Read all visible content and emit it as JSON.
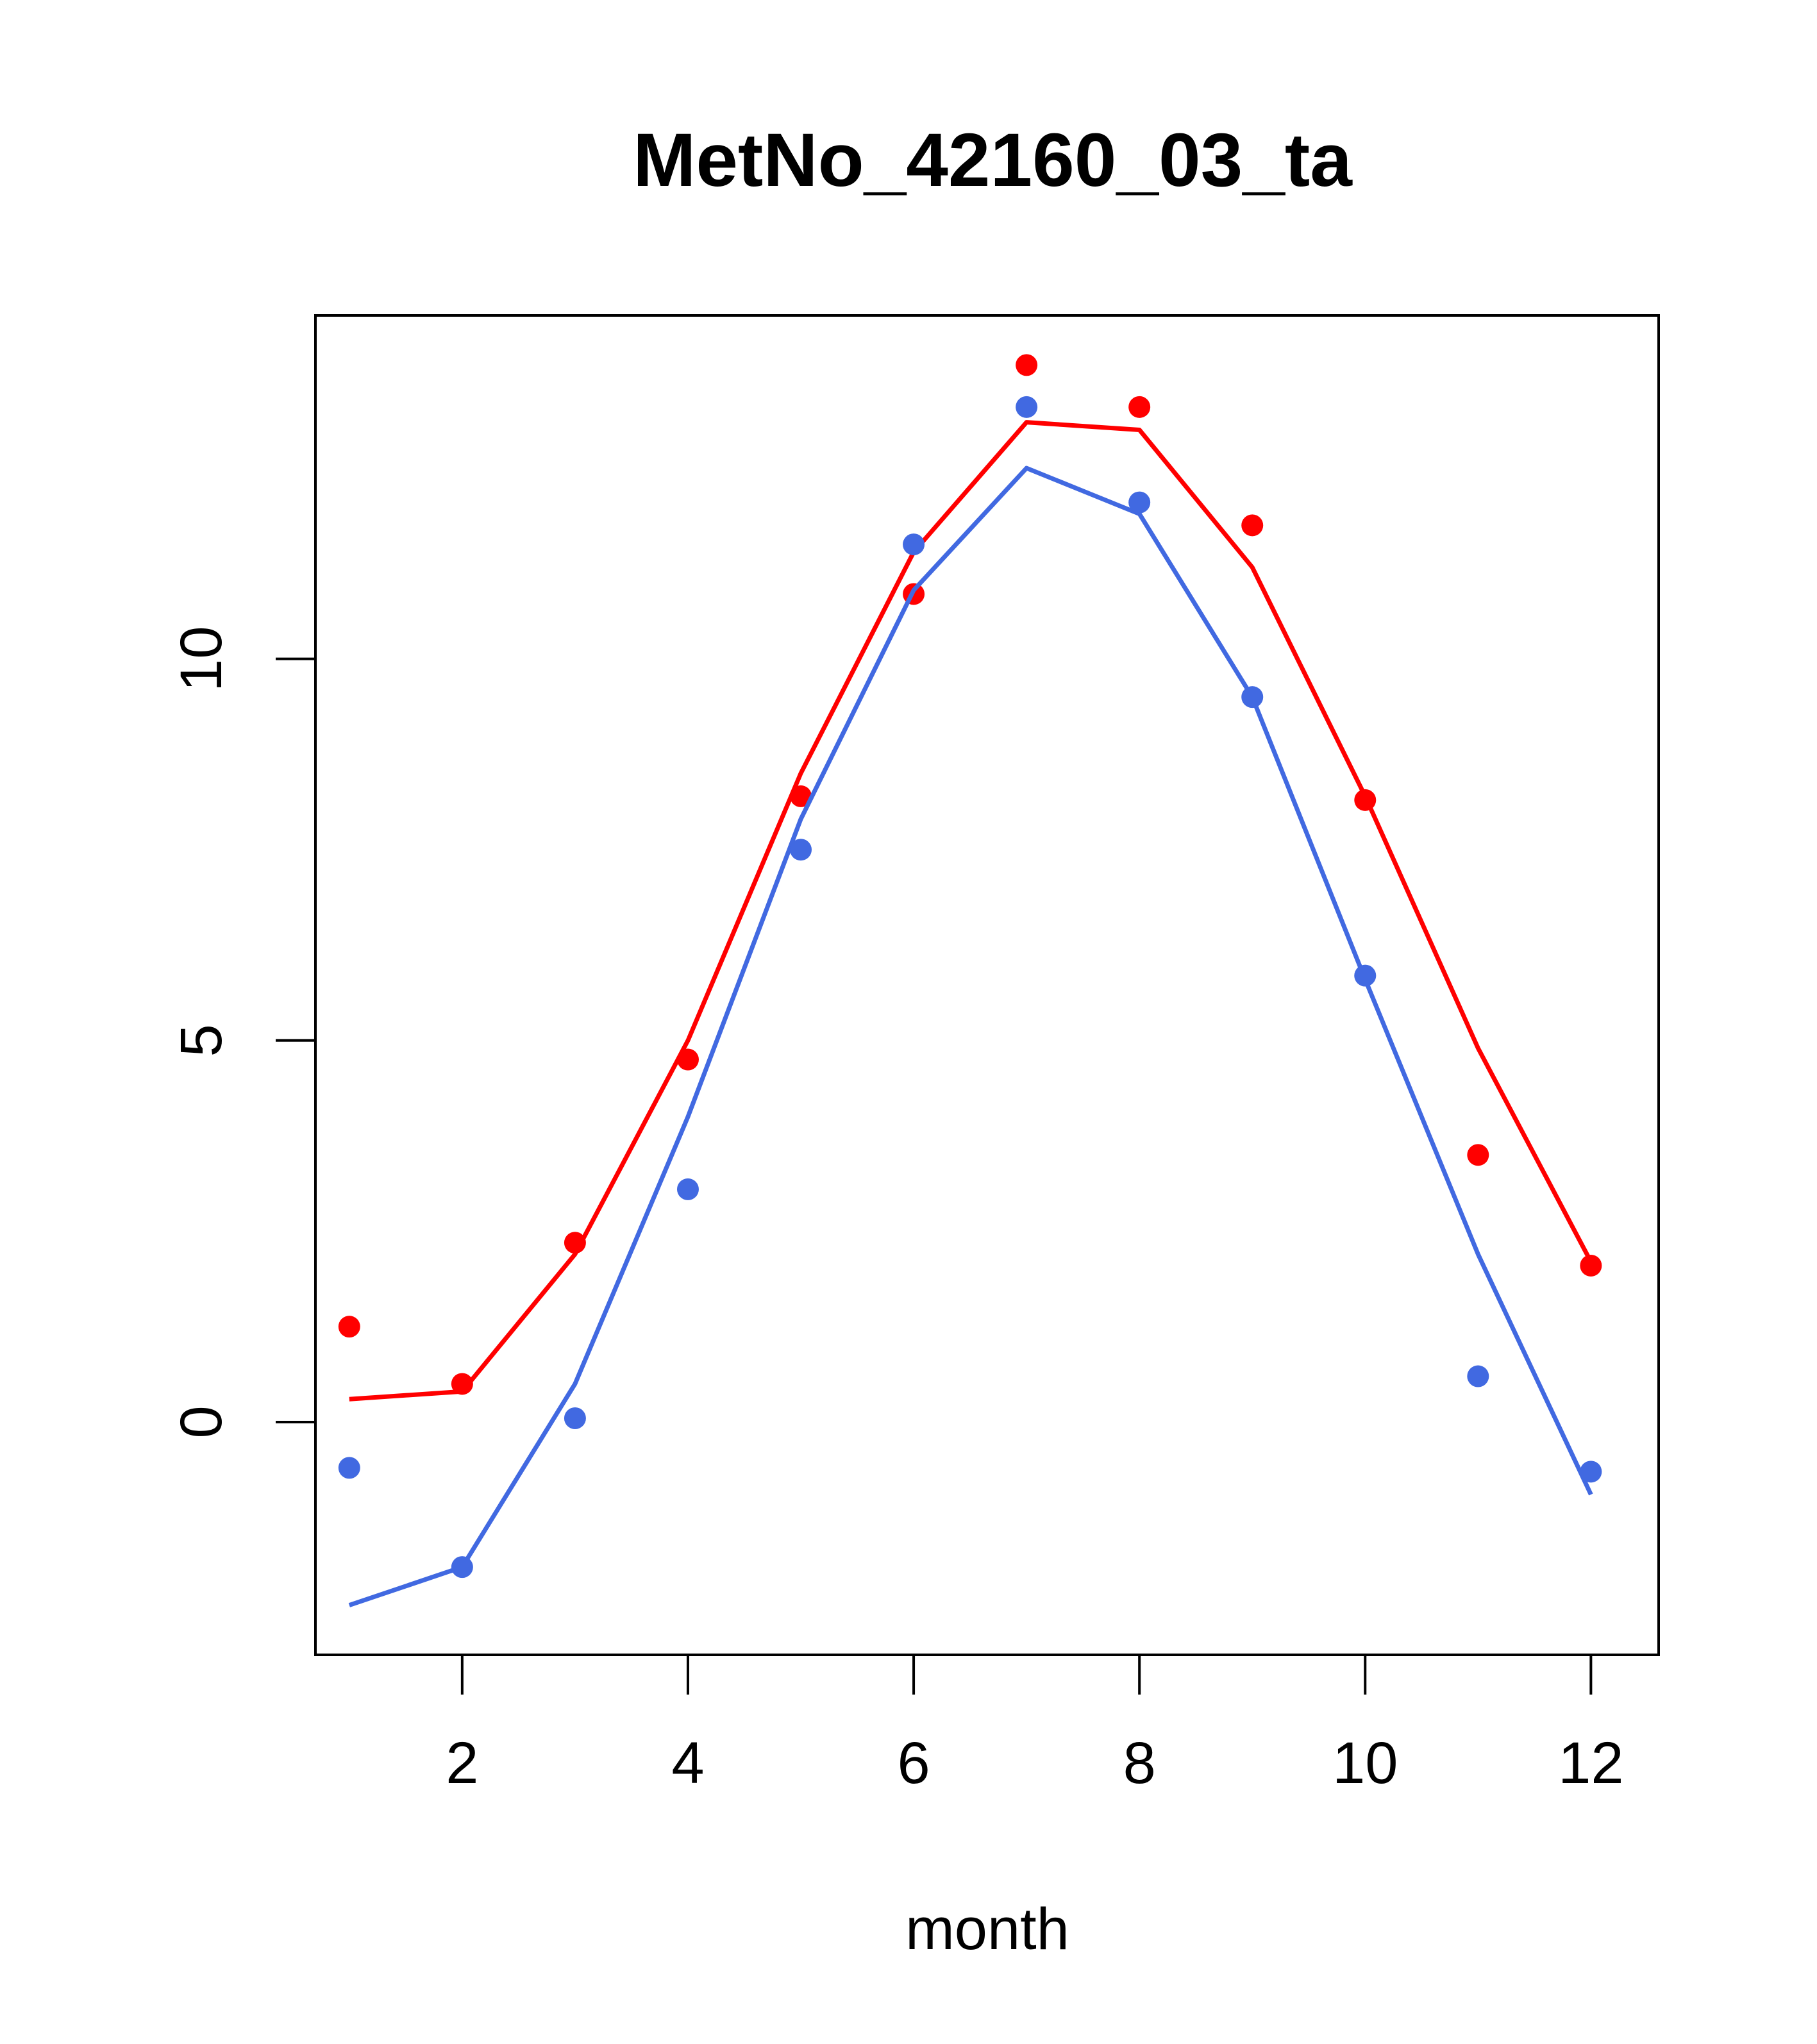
{
  "chart_data": {
    "type": "line",
    "title": "MetNo_42160_03_ta",
    "xlabel": "month",
    "ylabel": "",
    "xlim": [
      0.7,
      12.6
    ],
    "ylim": [
      -3.05,
      14.5
    ],
    "x_ticks": [
      2,
      4,
      6,
      8,
      10,
      12
    ],
    "x_tick_labels": [
      "2",
      "4",
      "6",
      "8",
      "10",
      "12"
    ],
    "y_ticks": [
      0,
      5,
      10
    ],
    "y_tick_labels": [
      "0",
      "5",
      "10"
    ],
    "grid": false,
    "x": [
      1,
      2,
      3,
      4,
      5,
      6,
      7,
      8,
      9,
      10,
      11,
      12
    ],
    "series": [
      {
        "color": "#FF0000",
        "line": [
          0.3,
          0.4,
          2.2,
          5.0,
          8.5,
          11.4,
          13.1,
          13.0,
          11.2,
          8.2,
          4.9,
          2.1
        ],
        "points": [
          1.25,
          0.5,
          2.35,
          4.75,
          8.2,
          10.85,
          13.85,
          13.3,
          11.75,
          8.15,
          3.5,
          2.05
        ]
      },
      {
        "color": "#4169E1",
        "line": [
          -2.4,
          -1.9,
          0.5,
          4.0,
          7.9,
          10.9,
          12.5,
          11.9,
          9.5,
          5.8,
          2.2,
          -0.95
        ],
        "points": [
          -0.6,
          -1.9,
          0.05,
          3.05,
          7.5,
          11.5,
          13.3,
          12.05,
          9.5,
          5.85,
          0.6,
          -0.65
        ]
      }
    ]
  }
}
